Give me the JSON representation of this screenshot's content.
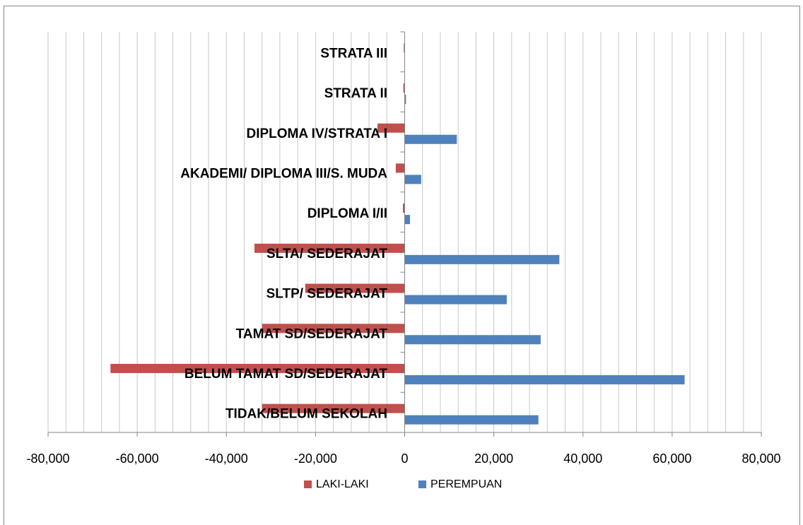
{
  "chart_data": {
    "type": "bar",
    "orientation": "horizontal",
    "categories": [
      "TIDAK/BELUM SEKOLAH",
      "BELUM TAMAT SD/SEDERAJAT",
      "TAMAT SD/SEDERAJAT",
      "SLTP/ SEDERAJAT",
      "SLTA/ SEDERAJAT",
      "DIPLOMA I/II",
      "AKADEMI/ DIPLOMA III/S. MUDA",
      "DIPLOMA IV/STRATA I",
      "STRATA  II",
      "STRATA III"
    ],
    "series": [
      {
        "name": "LAKI-LAKI",
        "color": "#c0504d",
        "values": [
          -32000,
          -66000,
          -32000,
          -22300,
          -33700,
          -400,
          -2000,
          -6100,
          -300,
          -200
        ]
      },
      {
        "name": "PEREMPUAN",
        "color": "#4f81bd",
        "values": [
          30000,
          62800,
          30500,
          22900,
          34700,
          1200,
          3700,
          11700,
          300,
          50
        ]
      }
    ],
    "xlim": [
      -80000,
      80000
    ],
    "xticks": [
      {
        "value": -80000,
        "label": "-80,000"
      },
      {
        "value": -60000,
        "label": "-60,000"
      },
      {
        "value": -40000,
        "label": "-40,000"
      },
      {
        "value": -20000,
        "label": "-20,000"
      },
      0,
      {
        "value": 20000,
        "label": "20,000"
      },
      {
        "value": 40000,
        "label": "40,000"
      },
      {
        "value": 60000,
        "label": "60,000"
      },
      {
        "value": 80000,
        "label": "80,000"
      }
    ],
    "xgrid": [
      -80000,
      -76000,
      -72000,
      -68000,
      -64000,
      -60000,
      -56000,
      -52000,
      -48000,
      -44000,
      -40000,
      -36000,
      -32000,
      -28000,
      -24000,
      -20000,
      -16000,
      -12000,
      -8000,
      -4000,
      0,
      4000,
      8000,
      12000,
      16000,
      20000,
      24000,
      28000,
      32000,
      36000,
      40000,
      44000,
      48000,
      52000,
      56000,
      60000,
      64000,
      68000,
      72000,
      76000,
      80000
    ],
    "grid": true,
    "legend": "bottom"
  }
}
